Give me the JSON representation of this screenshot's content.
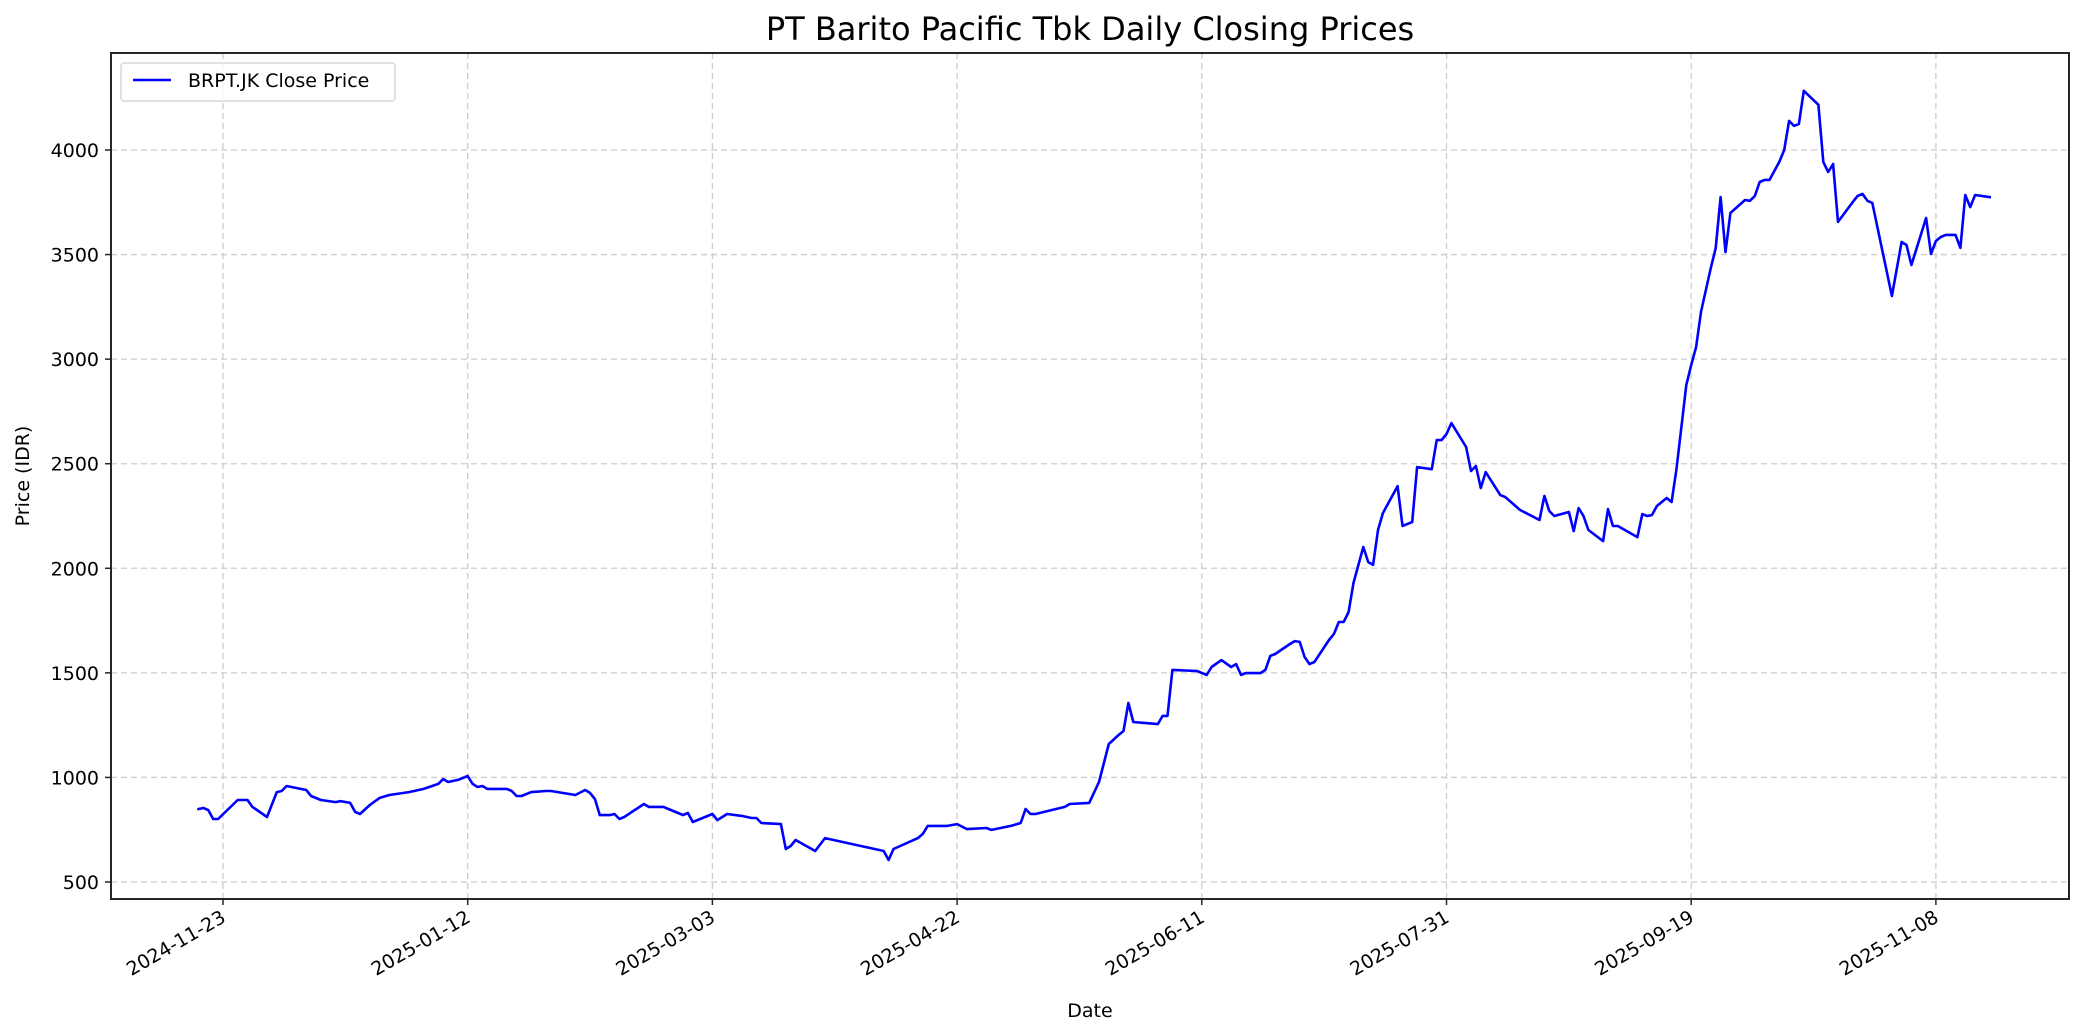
{
  "chart_data": {
    "type": "line",
    "title": "PT Barito Pacific Tbk Daily Closing Prices",
    "xlabel": "Date",
    "ylabel": "Price (IDR)",
    "ylim": [
      419,
      4464
    ],
    "xlim": [
      "2024-11-05",
      "2025-12-13"
    ],
    "grid": true,
    "legend_position": "upper left",
    "x_ticks": [
      "2024-11-23",
      "2025-01-12",
      "2025-03-03",
      "2025-04-22",
      "2025-06-11",
      "2025-07-31",
      "2025-09-19",
      "2025-11-08"
    ],
    "y_ticks": [
      500,
      1000,
      1500,
      2000,
      2500,
      3000,
      3500,
      4000
    ],
    "series": [
      {
        "name": "BRPT.JK Close Price",
        "color": "#0000ff",
        "points": [
          [
            "2024-11-18",
            849
          ],
          [
            "2024-11-19",
            854
          ],
          [
            "2024-11-20",
            844
          ],
          [
            "2024-11-21",
            801
          ],
          [
            "2024-11-22",
            801
          ],
          [
            "2024-11-26",
            892
          ],
          [
            "2024-11-28",
            892
          ],
          [
            "2024-11-29",
            859
          ],
          [
            "2024-12-02",
            811
          ],
          [
            "2024-12-04",
            930
          ],
          [
            "2024-12-05",
            935
          ],
          [
            "2024-12-06",
            959
          ],
          [
            "2024-12-10",
            940
          ],
          [
            "2024-12-11",
            911
          ],
          [
            "2024-12-13",
            892
          ],
          [
            "2024-12-16",
            882
          ],
          [
            "2024-12-17",
            887
          ],
          [
            "2024-12-19",
            878
          ],
          [
            "2024-12-20",
            835
          ],
          [
            "2024-12-21",
            825
          ],
          [
            "2024-12-23",
            868
          ],
          [
            "2024-12-25",
            902
          ],
          [
            "2024-12-27",
            916
          ],
          [
            "2024-12-31",
            930
          ],
          [
            "2025-01-03",
            945
          ],
          [
            "2025-01-06",
            969
          ],
          [
            "2025-01-07",
            992
          ],
          [
            "2025-01-08",
            978
          ],
          [
            "2025-01-10",
            988
          ],
          [
            "2025-01-12",
            1007
          ],
          [
            "2025-01-13",
            969
          ],
          [
            "2025-01-14",
            954
          ],
          [
            "2025-01-15",
            959
          ],
          [
            "2025-01-16",
            945
          ],
          [
            "2025-01-20",
            945
          ],
          [
            "2025-01-21",
            935
          ],
          [
            "2025-01-22",
            911
          ],
          [
            "2025-01-23",
            911
          ],
          [
            "2025-01-25",
            930
          ],
          [
            "2025-01-28",
            935
          ],
          [
            "2025-01-29",
            935
          ],
          [
            "2025-02-03",
            916
          ],
          [
            "2025-02-05",
            940
          ],
          [
            "2025-02-06",
            926
          ],
          [
            "2025-02-07",
            897
          ],
          [
            "2025-02-08",
            820
          ],
          [
            "2025-02-10",
            820
          ],
          [
            "2025-02-11",
            825
          ],
          [
            "2025-02-12",
            801
          ],
          [
            "2025-02-13",
            811
          ],
          [
            "2025-02-17",
            873
          ],
          [
            "2025-02-18",
            859
          ],
          [
            "2025-02-21",
            859
          ],
          [
            "2025-02-22",
            849
          ],
          [
            "2025-02-24",
            830
          ],
          [
            "2025-02-25",
            820
          ],
          [
            "2025-02-26",
            830
          ],
          [
            "2025-02-27",
            787
          ],
          [
            "2025-03-03",
            825
          ],
          [
            "2025-03-04",
            796
          ],
          [
            "2025-03-06",
            825
          ],
          [
            "2025-03-09",
            816
          ],
          [
            "2025-03-11",
            806
          ],
          [
            "2025-03-12",
            806
          ],
          [
            "2025-03-13",
            782
          ],
          [
            "2025-03-17",
            777
          ],
          [
            "2025-03-18",
            658
          ],
          [
            "2025-03-19",
            672
          ],
          [
            "2025-03-20",
            701
          ],
          [
            "2025-03-24",
            648
          ],
          [
            "2025-03-26",
            710
          ],
          [
            "2025-04-07",
            648
          ],
          [
            "2025-04-08",
            605
          ],
          [
            "2025-04-09",
            658
          ],
          [
            "2025-04-14",
            710
          ],
          [
            "2025-04-15",
            730
          ],
          [
            "2025-04-16",
            768
          ],
          [
            "2025-04-20",
            768
          ],
          [
            "2025-04-22",
            777
          ],
          [
            "2025-04-24",
            753
          ],
          [
            "2025-04-28",
            758
          ],
          [
            "2025-04-29",
            749
          ],
          [
            "2025-05-03",
            768
          ],
          [
            "2025-05-05",
            782
          ],
          [
            "2025-05-06",
            849
          ],
          [
            "2025-05-07",
            825
          ],
          [
            "2025-05-08",
            825
          ],
          [
            "2025-05-14",
            859
          ],
          [
            "2025-05-15",
            873
          ],
          [
            "2025-05-19",
            878
          ],
          [
            "2025-05-21",
            978
          ],
          [
            "2025-05-23",
            1160
          ],
          [
            "2025-05-25",
            1203
          ],
          [
            "2025-05-26",
            1222
          ],
          [
            "2025-05-27",
            1356
          ],
          [
            "2025-05-28",
            1265
          ],
          [
            "2025-06-02",
            1255
          ],
          [
            "2025-06-03",
            1294
          ],
          [
            "2025-06-04",
            1294
          ],
          [
            "2025-06-05",
            1514
          ],
          [
            "2025-06-10",
            1509
          ],
          [
            "2025-06-12",
            1490
          ],
          [
            "2025-06-13",
            1528
          ],
          [
            "2025-06-15",
            1561
          ],
          [
            "2025-06-17",
            1528
          ],
          [
            "2025-06-18",
            1542
          ],
          [
            "2025-06-19",
            1490
          ],
          [
            "2025-06-20",
            1499
          ],
          [
            "2025-06-23",
            1499
          ],
          [
            "2025-06-24",
            1514
          ],
          [
            "2025-06-25",
            1581
          ],
          [
            "2025-06-26",
            1590
          ],
          [
            "2025-06-29",
            1638
          ],
          [
            "2025-06-30",
            1652
          ],
          [
            "2025-07-01",
            1648
          ],
          [
            "2025-07-02",
            1576
          ],
          [
            "2025-07-03",
            1542
          ],
          [
            "2025-07-04",
            1552
          ],
          [
            "2025-07-07",
            1657
          ],
          [
            "2025-07-08",
            1686
          ],
          [
            "2025-07-09",
            1743
          ],
          [
            "2025-07-10",
            1743
          ],
          [
            "2025-07-11",
            1791
          ],
          [
            "2025-07-12",
            1930
          ],
          [
            "2025-07-14",
            2102
          ],
          [
            "2025-07-15",
            2030
          ],
          [
            "2025-07-16",
            2016
          ],
          [
            "2025-07-17",
            2183
          ],
          [
            "2025-07-18",
            2264
          ],
          [
            "2025-07-20",
            2350
          ],
          [
            "2025-07-21",
            2393
          ],
          [
            "2025-07-22",
            2202
          ],
          [
            "2025-07-24",
            2221
          ],
          [
            "2025-07-25",
            2484
          ],
          [
            "2025-07-28",
            2474
          ],
          [
            "2025-07-29",
            2613
          ],
          [
            "2025-07-30",
            2613
          ],
          [
            "2025-07-31",
            2642
          ],
          [
            "2025-08-01",
            2694
          ],
          [
            "2025-08-04",
            2580
          ],
          [
            "2025-08-05",
            2465
          ],
          [
            "2025-08-06",
            2489
          ],
          [
            "2025-08-07",
            2384
          ],
          [
            "2025-08-08",
            2460
          ],
          [
            "2025-08-11",
            2350
          ],
          [
            "2025-08-12",
            2341
          ],
          [
            "2025-08-15",
            2279
          ],
          [
            "2025-08-19",
            2231
          ],
          [
            "2025-08-20",
            2346
          ],
          [
            "2025-08-21",
            2274
          ],
          [
            "2025-08-22",
            2250
          ],
          [
            "2025-08-25",
            2269
          ],
          [
            "2025-08-26",
            2178
          ],
          [
            "2025-08-27",
            2288
          ],
          [
            "2025-08-28",
            2250
          ],
          [
            "2025-08-29",
            2183
          ],
          [
            "2025-09-01",
            2130
          ],
          [
            "2025-09-02",
            2283
          ],
          [
            "2025-09-03",
            2202
          ],
          [
            "2025-09-04",
            2202
          ],
          [
            "2025-09-08",
            2149
          ],
          [
            "2025-09-09",
            2259
          ],
          [
            "2025-09-10",
            2250
          ],
          [
            "2025-09-11",
            2255
          ],
          [
            "2025-09-12",
            2298
          ],
          [
            "2025-09-14",
            2336
          ],
          [
            "2025-09-15",
            2317
          ],
          [
            "2025-09-16",
            2475
          ],
          [
            "2025-09-18",
            2876
          ],
          [
            "2025-09-19",
            2972
          ],
          [
            "2025-09-20",
            3058
          ],
          [
            "2025-09-21",
            3226
          ],
          [
            "2025-09-23",
            3436
          ],
          [
            "2025-09-24",
            3531
          ],
          [
            "2025-09-25",
            3775
          ],
          [
            "2025-09-26",
            3512
          ],
          [
            "2025-09-27",
            3699
          ],
          [
            "2025-09-30",
            3761
          ],
          [
            "2025-10-01",
            3757
          ],
          [
            "2025-10-02",
            3780
          ],
          [
            "2025-10-03",
            3847
          ],
          [
            "2025-10-04",
            3857
          ],
          [
            "2025-10-05",
            3857
          ],
          [
            "2025-10-07",
            3943
          ],
          [
            "2025-10-08",
            4000
          ],
          [
            "2025-10-09",
            4139
          ],
          [
            "2025-10-10",
            4115
          ],
          [
            "2025-10-11",
            4125
          ],
          [
            "2025-10-12",
            4283
          ],
          [
            "2025-10-15",
            4216
          ],
          [
            "2025-10-16",
            3943
          ],
          [
            "2025-10-17",
            3895
          ],
          [
            "2025-10-18",
            3933
          ],
          [
            "2025-10-19",
            3656
          ],
          [
            "2025-10-22",
            3751
          ],
          [
            "2025-10-23",
            3780
          ],
          [
            "2025-10-24",
            3790
          ],
          [
            "2025-10-25",
            3757
          ],
          [
            "2025-10-26",
            3747
          ],
          [
            "2025-10-30",
            3302
          ],
          [
            "2025-11-01",
            3560
          ],
          [
            "2025-11-02",
            3546
          ],
          [
            "2025-11-03",
            3450
          ],
          [
            "2025-11-06",
            3675
          ],
          [
            "2025-11-07",
            3503
          ],
          [
            "2025-11-08",
            3565
          ],
          [
            "2025-11-09",
            3584
          ],
          [
            "2025-11-10",
            3594
          ],
          [
            "2025-11-12",
            3594
          ],
          [
            "2025-11-13",
            3532
          ],
          [
            "2025-11-14",
            3785
          ],
          [
            "2025-11-15",
            3727
          ],
          [
            "2025-11-16",
            3785
          ],
          [
            "2025-11-19",
            3775
          ]
        ]
      }
    ]
  },
  "colors": {
    "line": "#0000ff",
    "grid": "#cccccc",
    "axes": "#262626",
    "legend_border": "#d9d9d9"
  }
}
